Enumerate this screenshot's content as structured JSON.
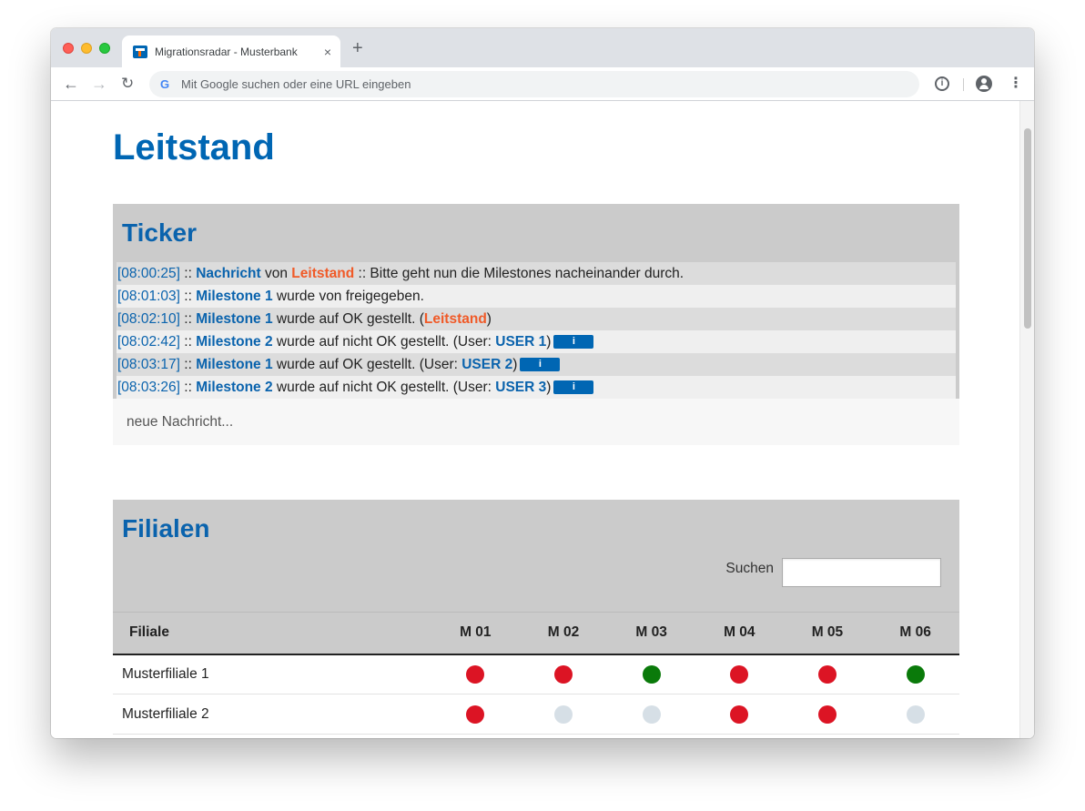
{
  "browser": {
    "tab_title": "Migrationsradar - Musterbank",
    "tab_close": "×",
    "new_tab": "+",
    "omnibox_placeholder": "Mit Google suchen oder eine URL eingeben",
    "google_glyph": "G",
    "back_glyph": "←",
    "forward_glyph": "→",
    "reload_glyph": "↻",
    "info_glyph": "i",
    "menu_glyph": "⋮"
  },
  "page": {
    "title": "Leitstand"
  },
  "ticker": {
    "title": "Ticker",
    "new_message_placeholder": "neue Nachricht...",
    "info_button_label": "i",
    "rows": [
      {
        "time": "[08:00:25]",
        "sep": " :: ",
        "b1": "Nachricht",
        "t1": " von ",
        "o1": "Leitstand",
        "t2": " :: Bitte geht nun die Milestones nacheinander durch."
      },
      {
        "time": "[08:01:03]",
        "sep": " :: ",
        "b1": "Milestone 1",
        "t1": " wurde von freigegeben."
      },
      {
        "time": "[08:02:10]",
        "sep": " :: ",
        "b1": "Milestone 1",
        "t1": " wurde auf OK gestellt. (",
        "o1": "Leitstand",
        "t2": ")"
      },
      {
        "time": "[08:02:42]",
        "sep": " :: ",
        "b1": "Milestone 2",
        "t1": " wurde auf nicht OK gestellt. (User: ",
        "b2": "USER 1",
        "t2": ")"
      },
      {
        "time": "[08:03:17]",
        "sep": " :: ",
        "b1": "Milestone 1",
        "t1": " wurde auf OK gestellt. (User: ",
        "b2": "USER 2",
        "t2": ")"
      },
      {
        "time": "[08:03:26]",
        "sep": " :: ",
        "b1": "Milestone 2",
        "t1": " wurde auf nicht OK gestellt. (User: ",
        "b2": "USER 3",
        "t2": ")"
      }
    ]
  },
  "branches": {
    "title": "Filialen",
    "search_label": "Suchen",
    "search_value": "",
    "columns": [
      "Filiale",
      "M 01",
      "M 02",
      "M 03",
      "M 04",
      "M 05",
      "M 06"
    ],
    "rows": [
      {
        "name": "Musterfiliale 1",
        "status": [
          "red",
          "red",
          "green",
          "red",
          "red",
          "green"
        ]
      },
      {
        "name": "Musterfiliale 2",
        "status": [
          "red",
          "grey",
          "grey",
          "red",
          "red",
          "grey"
        ]
      }
    ]
  },
  "colors": {
    "brand_blue": "#0066b3",
    "accent_orange": "#f05a28",
    "status_red": "#dc1424",
    "status_green": "#0a7a0a",
    "status_grey": "#d6dfe6"
  }
}
